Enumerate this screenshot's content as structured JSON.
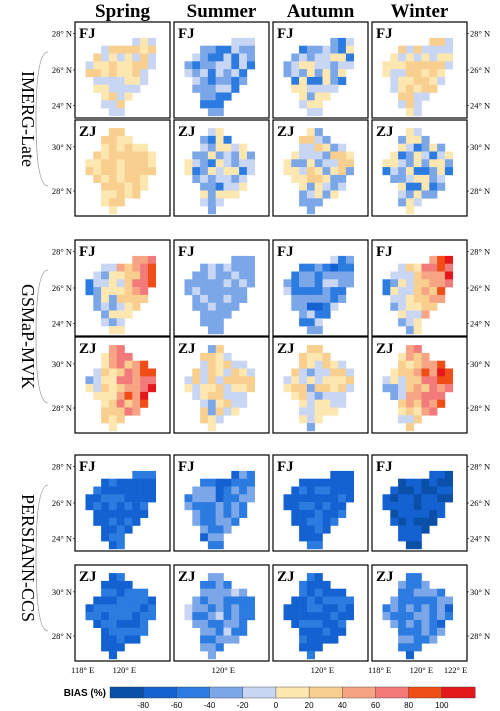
{
  "chart_data": {
    "type": "heatmap",
    "seasons": [
      "Spring",
      "Summer",
      "Autumn",
      "Winter"
    ],
    "products": [
      "IMERG-Late",
      "GSMaP-MVK",
      "PERSIANN-CCS"
    ],
    "province_labels": [
      "FJ",
      "ZJ"
    ],
    "fj_lat_ticks": [
      "28° N",
      "26° N",
      "24° N"
    ],
    "zj_lat_ticks": [
      "30° N",
      "28° N"
    ],
    "lon_ticks": [
      "118° E",
      "120° E",
      "122° E"
    ],
    "colorbar": {
      "title": "BIAS (%)",
      "bins": [
        -100,
        -80,
        -60,
        -40,
        -20,
        0,
        20,
        40,
        60,
        80,
        100,
        120
      ],
      "tick_labels": [
        "-80",
        "-60",
        "-40",
        "-20",
        "0",
        "20",
        "40",
        "60",
        "80",
        "100"
      ],
      "colors": [
        "#0a4fa8",
        "#1461d2",
        "#2b7be0",
        "#7ba7e8",
        "#c9d6f3",
        "#fde7b0",
        "#f8cf8e",
        "#f7a484",
        "#f27a7a",
        "#f04d17",
        "#e4181b"
      ]
    },
    "fj_mask": [
      "..........",
      "......###.",
      "..#######.",
      ".########.",
      "#########.",
      "########..",
      ".#######..",
      ".######...",
      "..####....",
      "..###.....",
      "...##....."
    ],
    "zj_mask": [
      "...##.....",
      "..####....",
      "..######..",
      ".########.",
      "#########.",
      "#########.",
      ".#######..",
      "..######..",
      "..#####...",
      "..###.....",
      "...#......"
    ],
    "panels": [
      {
        "product": "IMERG-Late",
        "province": "FJ",
        "season": "Spring",
        "pattern": "mixed",
        "base": 10,
        "amp": 30
      },
      {
        "product": "IMERG-Late",
        "province": "FJ",
        "season": "Summer",
        "pattern": "mixed",
        "base": -30,
        "amp": 22
      },
      {
        "product": "IMERG-Late",
        "province": "FJ",
        "season": "Autumn",
        "pattern": "mixed",
        "base": -15,
        "amp": 35
      },
      {
        "product": "IMERG-Late",
        "province": "FJ",
        "season": "Winter",
        "pattern": "mixed",
        "base": 10,
        "amp": 30
      },
      {
        "product": "IMERG-Late",
        "province": "ZJ",
        "season": "Spring",
        "pattern": "mixed",
        "base": 20,
        "amp": 20
      },
      {
        "product": "IMERG-Late",
        "province": "ZJ",
        "season": "Summer",
        "pattern": "mixed",
        "base": -15,
        "amp": 30
      },
      {
        "product": "IMERG-Late",
        "province": "ZJ",
        "season": "Autumn",
        "pattern": "mixed",
        "base": -5,
        "amp": 35
      },
      {
        "product": "IMERG-Late",
        "province": "ZJ",
        "season": "Winter",
        "pattern": "mixed",
        "base": -15,
        "amp": 35
      },
      {
        "product": "GSMaP-MVK",
        "province": "FJ",
        "season": "Spring",
        "pattern": "east",
        "base": 0,
        "amp": 25
      },
      {
        "product": "GSMaP-MVK",
        "province": "FJ",
        "season": "Summer",
        "pattern": "mixed",
        "base": -25,
        "amp": 15
      },
      {
        "product": "GSMaP-MVK",
        "province": "FJ",
        "season": "Autumn",
        "pattern": "mixed",
        "base": -38,
        "amp": 25
      },
      {
        "product": "GSMaP-MVK",
        "province": "FJ",
        "season": "Winter",
        "pattern": "east",
        "base": 10,
        "amp": 25
      },
      {
        "product": "GSMaP-MVK",
        "province": "ZJ",
        "season": "Spring",
        "pattern": "east",
        "base": 30,
        "amp": 25
      },
      {
        "product": "GSMaP-MVK",
        "province": "ZJ",
        "season": "Summer",
        "pattern": "mixed",
        "base": 5,
        "amp": 30
      },
      {
        "product": "GSMaP-MVK",
        "province": "ZJ",
        "season": "Autumn",
        "pattern": "mixed",
        "base": 5,
        "amp": 30
      },
      {
        "product": "GSMaP-MVK",
        "province": "ZJ",
        "season": "Winter",
        "pattern": "east",
        "base": 25,
        "amp": 25
      },
      {
        "product": "PERSIANN-CCS",
        "province": "FJ",
        "season": "Spring",
        "pattern": "mixed",
        "base": -65,
        "amp": 10
      },
      {
        "product": "PERSIANN-CCS",
        "province": "FJ",
        "season": "Summer",
        "pattern": "mixed",
        "base": -45,
        "amp": 18
      },
      {
        "product": "PERSIANN-CCS",
        "province": "FJ",
        "season": "Autumn",
        "pattern": "mixed",
        "base": -65,
        "amp": 10
      },
      {
        "product": "PERSIANN-CCS",
        "province": "FJ",
        "season": "Winter",
        "pattern": "mixed",
        "base": -78,
        "amp": 14
      },
      {
        "product": "PERSIANN-CCS",
        "province": "ZJ",
        "season": "Spring",
        "pattern": "mixed",
        "base": -60,
        "amp": 12
      },
      {
        "product": "PERSIANN-CCS",
        "province": "ZJ",
        "season": "Summer",
        "pattern": "mixed",
        "base": -35,
        "amp": 18
      },
      {
        "product": "PERSIANN-CCS",
        "province": "ZJ",
        "season": "Autumn",
        "pattern": "mixed",
        "base": -62,
        "amp": 10
      },
      {
        "product": "PERSIANN-CCS",
        "province": "ZJ",
        "season": "Winter",
        "pattern": "mixed",
        "base": -45,
        "amp": 18
      }
    ]
  }
}
